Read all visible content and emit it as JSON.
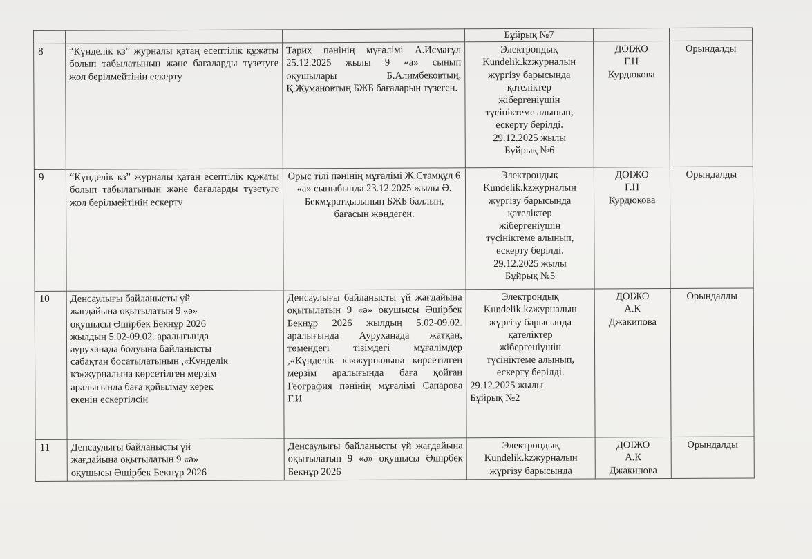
{
  "table": {
    "top_fragment": {
      "col4": "Бұйрық №7"
    },
    "rows": [
      {
        "num": "8",
        "task": "“Күнделік кз” журналы қатаң есептілік құжаты болып табылатынын және бағаларды түзетуге жол берілмейтінін ескерту",
        "finding": "Тарих пәнінің мұғалімі А.Исмағұл 25.12.2025 жылы 9 «а» сынып оқушылары Б.Алимбековтың, Қ.Жумановтың БЖБ бағаларын түзеген.",
        "action": [
          "Электрондық",
          "Kundelik.kzжурналын",
          "жүргізу барысында",
          "қателіктер",
          "жібергеніүшін",
          "түсініктеме алынып,",
          "ескерту берілді.",
          "29.12.2025 жылы",
          "Бұйрық №6"
        ],
        "responsible": [
          "ДОІЖО",
          "Г.Н",
          "Курдюкова"
        ],
        "status": "Орындалды"
      },
      {
        "num": "9",
        "task": "“Күнделік кз” журналы қатаң есептілік құжаты болып табылатынын және бағаларды түзетуге жол берілмейтінін ескерту",
        "finding": "Орыс тілі пәнінің мұғалімі Ж.Стамқұл 6 «а» сыныбында 23.12.2025 жылы Ә. Бекмұратқызының БЖБ баллын, бағасын жөндеген.",
        "action": [
          "Электрондық",
          "Kundelik.kzжурналын",
          "жүргізу барысында",
          "қателіктер",
          "жібергеніүшін",
          "түсініктеме алынып,",
          "ескерту берілді.",
          "29.12.2025 жылы",
          "Бұйрық  №5"
        ],
        "responsible": [
          "ДОІЖО",
          "Г.Н",
          "Курдюкова"
        ],
        "status": "Орындалды"
      },
      {
        "num": "10",
        "task": [
          "Денсаулығы байланысты үй",
          "жағдайына оқытылатын 9 «ә»",
          "оқушысы Әшірбек Бекнұр  2026",
          "жылдың 5.02-09.02. аралығында",
          "ауруханада болуына байланысты",
          "сабақтан босатылатынын ,«Күнделік",
          "кз»журналына  көрсетілген мерзім",
          "аралығында баға қойылмау керек",
          "екенін ескертілсін"
        ],
        "finding": "Денсаулығы байланысты үй жағдайына оқытылатын 9 «ә» оқушысы Әшірбек Бекнұр 2026 жылдың 5.02-09.02. аралығында Ауруханада жатқан, төмендегі тізімдегі мұғалімдер ,«Күнделік кз»журналына көрсетілген мерзім аралығында баға қойған География пәнінің мұғалімі Сапарова Г.И",
        "action": [
          "Электрондық",
          "Kundelik.kzжурналын",
          "жүргізу барысында",
          "қателіктер",
          "жібергеніүшін",
          "түсініктеме алынып,",
          "ескерту берілді.",
          "29.12.2025 жылы",
          "Бұйрық  №2"
        ],
        "responsible": [
          "ДОІЖО",
          "А.К",
          "Джакипова"
        ],
        "status": "Орындалды"
      },
      {
        "num": "11",
        "task": [
          "Денсаулығы байланысты үй",
          "жағдайына оқытылатын 9 «ә»",
          "оқушысы Әшірбек Бекнұр  2026"
        ],
        "finding": "Денсаулығы байланысты үй жағдайына оқытылатын 9 «ә» оқушысы Әшірбек Бекнұр 2026",
        "action": [
          "Электрондық",
          "Kundelik.kzжурналын",
          "жүргізу барысында"
        ],
        "responsible": [
          "ДОІЖО",
          "А.К",
          "Джакипова"
        ],
        "status": "Орындалды"
      }
    ]
  }
}
